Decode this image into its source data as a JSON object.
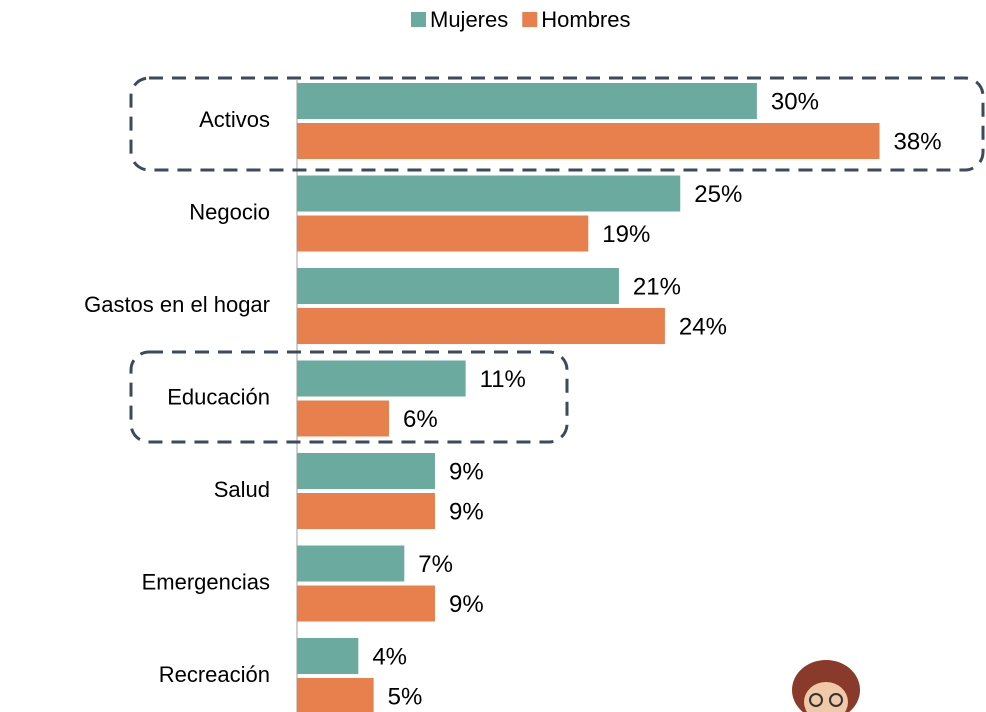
{
  "chart_data": {
    "type": "hbar",
    "categories": [
      "Activos",
      "Negocio",
      "Gastos en el hogar",
      "Educación",
      "Salud",
      "Emergencias",
      "Recreación"
    ],
    "series": [
      {
        "name": "Mujeres",
        "color": "#6aaa9f",
        "values": [
          30,
          25,
          21,
          11,
          9,
          7,
          4
        ],
        "value_labels": [
          "30%",
          "25%",
          "21%",
          "11%",
          "9%",
          "7%",
          "4%"
        ]
      },
      {
        "name": "Hombres",
        "color": "#e8804e",
        "values": [
          38,
          19,
          24,
          6,
          9,
          9,
          5
        ],
        "value_labels": [
          "38%",
          "19%",
          "24%",
          "6%",
          "9%",
          "9%",
          "5%"
        ]
      }
    ],
    "legend": "top"
  }
}
